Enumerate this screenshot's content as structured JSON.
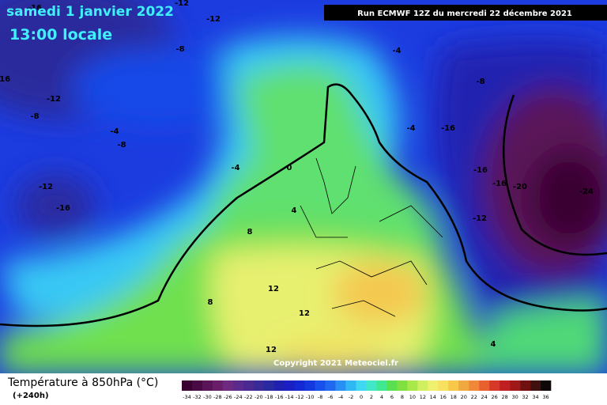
{
  "header": {
    "title": "samedi 1 janvier 2022",
    "subtitle": "13:00 locale",
    "run": "Run ECMWF 12Z du mercredi 22 décembre 2021"
  },
  "copyright": "Copyright 2021 Meteociel.fr",
  "footer": {
    "variable": "Température à 850hPa (°C)",
    "lead": "(+240h)"
  },
  "map_labels": [
    "-16",
    "-12",
    "-12",
    "-8",
    "-4",
    "-16",
    "-12",
    "-8",
    "-4",
    "-8",
    "-8",
    "-4",
    "-16",
    "-4",
    "0",
    "-16",
    "-16",
    "-20",
    "-24",
    "-12",
    "-16",
    "4",
    "-12",
    "8",
    "12",
    "8",
    "12",
    "12",
    "4"
  ],
  "legend": {
    "labels": [
      "-34",
      "-32",
      "-30",
      "-28",
      "-26",
      "-24",
      "-22",
      "-20",
      "-18",
      "-16",
      "-14",
      "-12",
      "-10",
      "-8",
      "-6",
      "-4",
      "-2",
      "0",
      "2",
      "4",
      "6",
      "8",
      "10",
      "12",
      "14",
      "16",
      "18",
      "20",
      "22",
      "24",
      "26",
      "28",
      "30",
      "32",
      "34",
      "36"
    ],
    "colors": [
      "#3a0030",
      "#4a0a44",
      "#5a1458",
      "#6a1e6a",
      "#6e2a80",
      "#5a2a8c",
      "#4a2a90",
      "#3a2a98",
      "#2a2aa0",
      "#2020b0",
      "#1a20c4",
      "#1428d4",
      "#1438e0",
      "#1850ec",
      "#2068f0",
      "#2890f4",
      "#30b8f4",
      "#40d8f0",
      "#40e8c8",
      "#40e890",
      "#58e050",
      "#80e040",
      "#a8e848",
      "#d0f060",
      "#f0f070",
      "#f8e060",
      "#f8c848",
      "#f0a840",
      "#f08838",
      "#e86030",
      "#d83828",
      "#c02020",
      "#a01818",
      "#701010",
      "#401010",
      "#100808"
    ]
  }
}
